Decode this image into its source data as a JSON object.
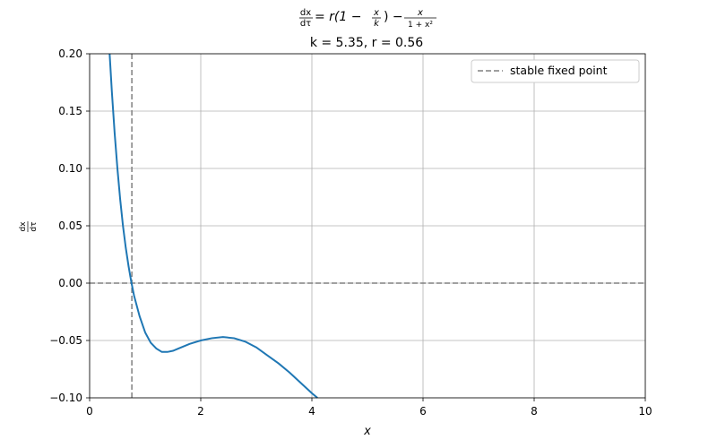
{
  "chart_data": {
    "type": "line",
    "title": {
      "equation": {
        "lhs_num": "dx",
        "lhs_den": "dτ",
        "eq_part": " = r(1 − ",
        "x_num": "x",
        "x_den": "k",
        "close_minus": ") − ",
        "rhs_num": "x",
        "rhs_den": "1 + x²"
      },
      "params": "k = 5.35, r = 0.56"
    },
    "xlabel": "x",
    "ylabel": {
      "num": "dx",
      "den": "dτ"
    },
    "xlim": [
      0,
      10
    ],
    "ylim": [
      -0.1,
      0.2
    ],
    "x_ticks": [
      0,
      2,
      4,
      6,
      8,
      10
    ],
    "x_tick_labels": [
      "0",
      "2",
      "4",
      "6",
      "8",
      "10"
    ],
    "y_ticks": [
      -0.1,
      -0.05,
      0.0,
      0.05,
      0.1,
      0.15,
      0.2
    ],
    "y_tick_labels": [
      "−0.10",
      "−0.05",
      "0.00",
      "0.05",
      "0.10",
      "0.15",
      "0.20"
    ],
    "grid": true,
    "parameters": {
      "k": 5.35,
      "r": 0.56
    },
    "series": [
      {
        "color": "#1f77b4",
        "x": [
          0.36,
          0.4,
          0.45,
          0.5,
          0.55,
          0.6,
          0.65,
          0.7,
          0.75,
          0.8,
          0.9,
          1.0,
          1.1,
          1.2,
          1.3,
          1.4,
          1.5,
          1.6,
          1.8,
          2.0,
          2.2,
          2.4,
          2.6,
          2.8,
          3.0,
          3.2,
          3.4,
          3.6,
          3.8,
          4.0,
          4.1
        ],
        "y": [
          0.2,
          0.167,
          0.131,
          0.1,
          0.073,
          0.05,
          0.031,
          0.015,
          0.001,
          -0.011,
          -0.029,
          -0.043,
          -0.052,
          -0.057,
          -0.06,
          -0.06,
          -0.059,
          -0.057,
          -0.053,
          -0.05,
          -0.048,
          -0.047,
          -0.048,
          -0.051,
          -0.056,
          -0.063,
          -0.07,
          -0.078,
          -0.087,
          -0.096,
          -0.1
        ]
      }
    ],
    "reference_lines": [
      {
        "orientation": "horizontal",
        "value": 0.0,
        "color": "#808080",
        "style": "dashed"
      },
      {
        "orientation": "vertical",
        "value": 0.76,
        "color": "#808080",
        "style": "dashed",
        "label": "stable fixed point"
      }
    ],
    "legend": {
      "placement": "top-right",
      "entries": [
        "stable fixed point"
      ]
    }
  }
}
